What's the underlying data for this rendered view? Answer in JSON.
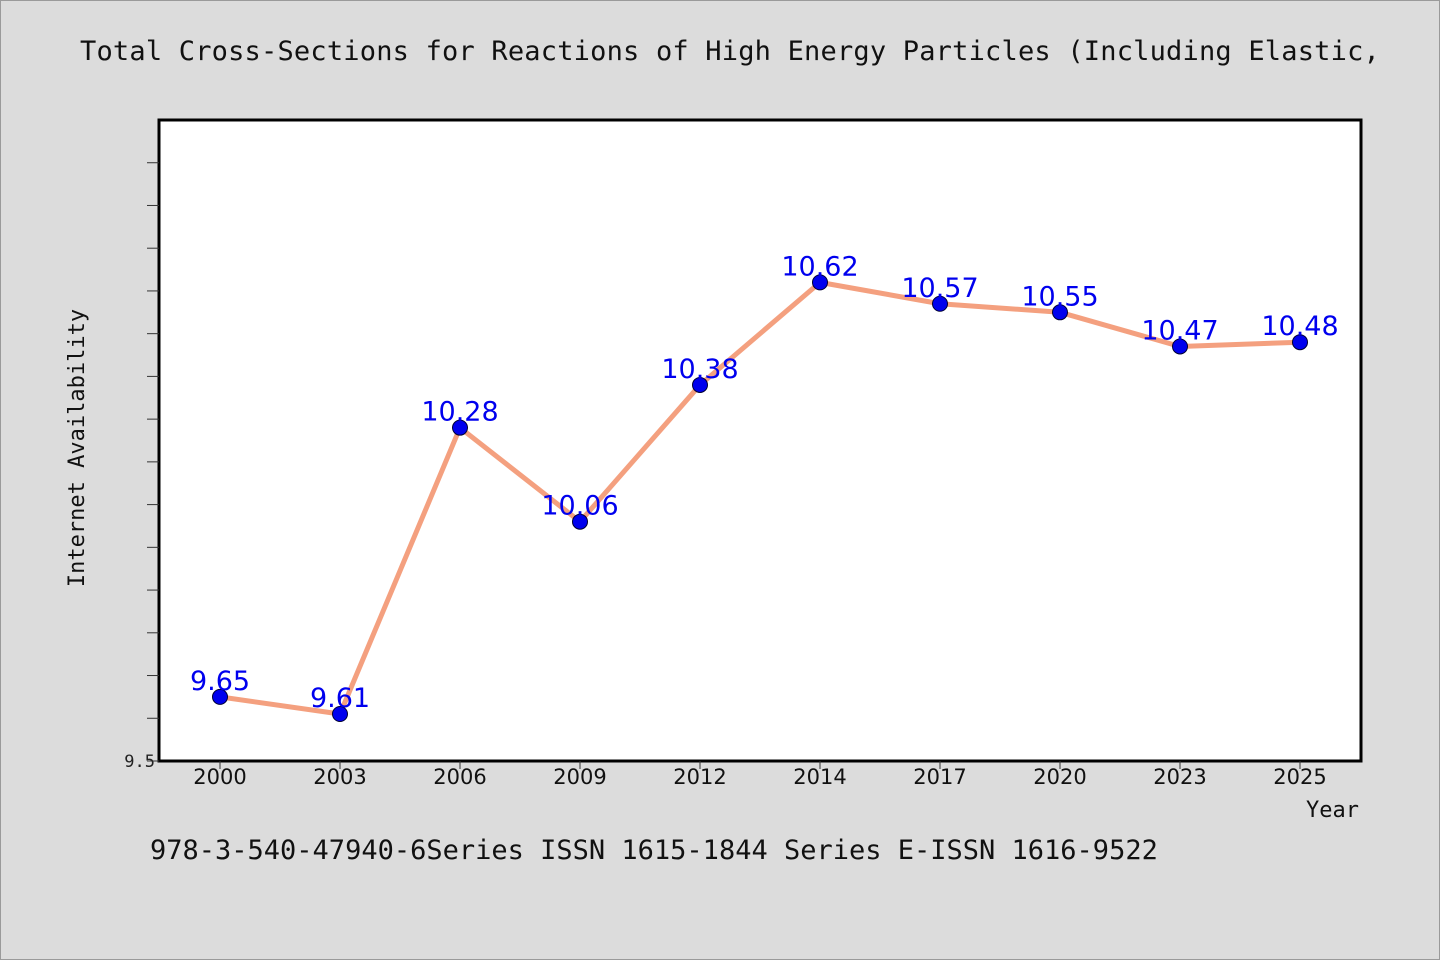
{
  "title": "Total Cross-Sections for Reactions of High Energy Particles (Including Elastic,",
  "footer": "978-3-540-47940-6Series ISSN 1615-1844 Series E-ISSN 1616-9522",
  "chart_data": {
    "type": "line",
    "title": "Total Cross-Sections for Reactions of High Energy Particles (Including Elastic,",
    "xlabel": "Year",
    "ylabel": "Internet Availability",
    "categories": [
      "2000",
      "2003",
      "2006",
      "2009",
      "2012",
      "2014",
      "2017",
      "2020",
      "2023",
      "2025"
    ],
    "series": [
      {
        "values": [
          9.65,
          9.61,
          10.28,
          10.06,
          10.38,
          10.62,
          10.57,
          10.55,
          10.47,
          10.48
        ]
      }
    ],
    "value_labels": [
      "9.65",
      "9.61",
      "10.28",
      "10.06",
      "10.38",
      "10.62",
      "10.57",
      "10.55",
      "10.47",
      "10.48"
    ],
    "ylim": [
      9.5,
      11.0
    ],
    "y_tick_step": 0.1,
    "y_tick_labels": [
      "9.5"
    ],
    "grid": false,
    "line_color": "#f4a07f",
    "marker_color": "#0000ee",
    "label_color": "#0000ee"
  }
}
